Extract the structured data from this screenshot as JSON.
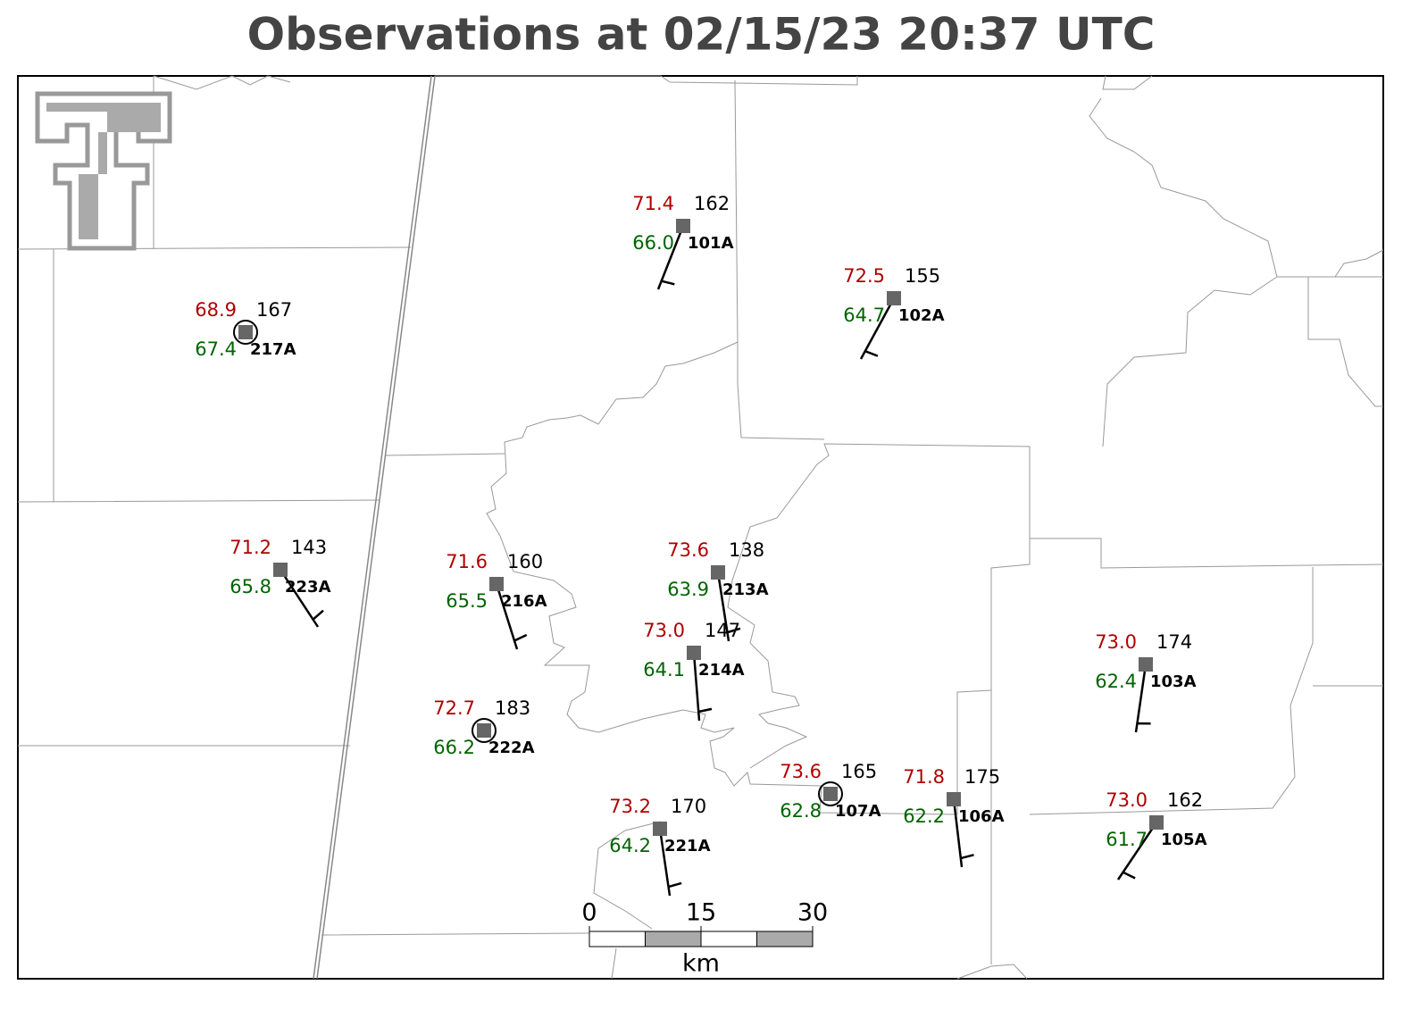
{
  "title": "Observations at 02/15/23 20:37 UTC",
  "stations": [
    {
      "id": "101A",
      "temperature": "71.4",
      "dewpoint": "66.0",
      "pressure": "162"
    },
    {
      "id": "102A",
      "temperature": "72.5",
      "dewpoint": "64.7",
      "pressure": "155"
    },
    {
      "id": "217A",
      "temperature": "68.9",
      "dewpoint": "67.4",
      "pressure": "167"
    },
    {
      "id": "223A",
      "temperature": "71.2",
      "dewpoint": "65.8",
      "pressure": "143"
    },
    {
      "id": "216A",
      "temperature": "71.6",
      "dewpoint": "65.5",
      "pressure": "160"
    },
    {
      "id": "213A",
      "temperature": "73.6",
      "dewpoint": "63.9",
      "pressure": "138"
    },
    {
      "id": "214A",
      "temperature": "73.0",
      "dewpoint": "64.1",
      "pressure": "147"
    },
    {
      "id": "222A",
      "temperature": "72.7",
      "dewpoint": "66.2",
      "pressure": "183"
    },
    {
      "id": "107A",
      "temperature": "73.6",
      "dewpoint": "62.8",
      "pressure": "165"
    },
    {
      "id": "221A",
      "temperature": "73.2",
      "dewpoint": "64.2",
      "pressure": "170"
    },
    {
      "id": "106A",
      "temperature": "71.8",
      "dewpoint": "62.2",
      "pressure": "175"
    },
    {
      "id": "103A",
      "temperature": "73.0",
      "dewpoint": "62.4",
      "pressure": "174"
    },
    {
      "id": "105A",
      "temperature": "73.0",
      "dewpoint": "61.7",
      "pressure": "162"
    }
  ],
  "scale_bar": {
    "ticks": [
      "0",
      "15",
      "30"
    ],
    "unit": "km"
  }
}
